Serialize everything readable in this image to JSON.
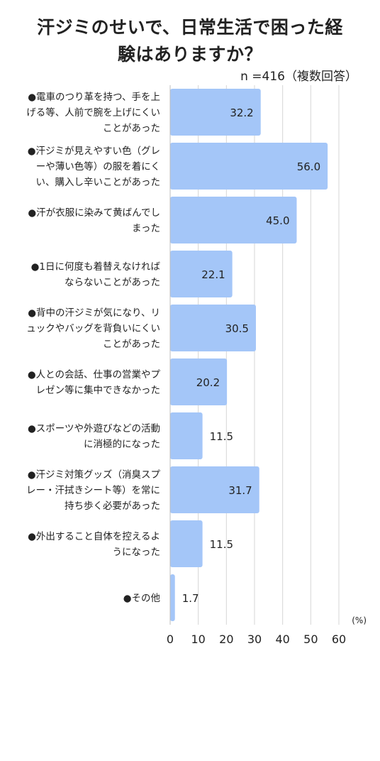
{
  "chart_data": {
    "type": "bar",
    "orientation": "horizontal",
    "title_lines": [
      "汗ジミのせいで、日常生活で困った経",
      "験はありますか？"
    ],
    "sample_note": "n =416（複数回答）",
    "unit": "(%)",
    "xlim": [
      0,
      60
    ],
    "ticks": [
      "0",
      "10",
      "20",
      "30",
      "40",
      "50",
      "60"
    ],
    "grid": true,
    "bar_color": "#a4c6f8",
    "categories": [
      [
        "●電車のつり革を持つ、手を上",
        "げる等、人前で腕を上げにくい",
        "ことがあった"
      ],
      [
        "●汗ジミが見えやすい色（グレ",
        "ーや薄い色等）の服を着にく",
        "い、購入し辛いことがあった"
      ],
      [
        "●汗が衣服に染みて黄ばんでし",
        "まった"
      ],
      [
        "●1日に何度も着替えなければ",
        "ならないことがあった"
      ],
      [
        "●背中の汗ジミが気になり、リ",
        "ュックやバッグを背負いにくい",
        "ことがあった"
      ],
      [
        "●人との会話、仕事の営業やプ",
        "レゼン等に集中できなかった"
      ],
      [
        "●スポーツや外遊びなどの活動",
        "に消極的になった"
      ],
      [
        "●汗ジミ対策グッズ（消臭スプ",
        "レー・汗拭きシート等）を常に",
        "持ち歩く必要があった"
      ],
      [
        "●外出すること自体を控えるよ",
        "うになった"
      ],
      [
        "●その他"
      ]
    ],
    "values": [
      32.2,
      56.0,
      45.0,
      22.1,
      30.5,
      20.2,
      11.5,
      31.7,
      11.5,
      1.7
    ],
    "value_labels": [
      "32.2",
      "56.0",
      "45.0",
      "22.1",
      "30.5",
      "20.2",
      "11.5",
      "31.7",
      "11.5",
      "1.7"
    ]
  }
}
